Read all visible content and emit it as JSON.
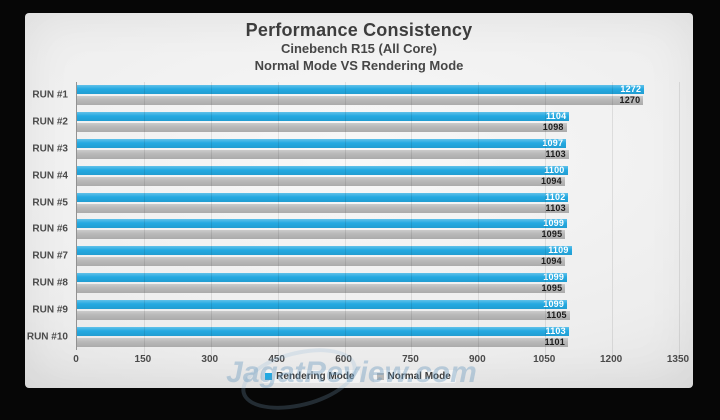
{
  "header": {
    "title": "Performance Consistency",
    "subtitle1": "Cinebench R15 (All Core)",
    "subtitle2": "Normal Mode VS Rendering Mode"
  },
  "watermark": {
    "text": "JagatReview.com"
  },
  "colors": {
    "rendering_mode": "#24a9e1",
    "normal_mode": "#b8b8b8",
    "axis_text": "#4a4a4a",
    "title_text": "#3d3d3d"
  },
  "chart_data": {
    "type": "bar",
    "orientation": "horizontal",
    "title": "Performance Consistency",
    "subtitle": [
      "Cinebench R15 (All Core)",
      "Normal Mode VS Rendering Mode"
    ],
    "categories": [
      "RUN #1",
      "RUN #2",
      "RUN #3",
      "RUN #4",
      "RUN #5",
      "RUN #6",
      "RUN #7",
      "RUN #8",
      "RUN #9",
      "RUN #10"
    ],
    "series": [
      {
        "name": "Rendering Mode",
        "color": "#24a9e1",
        "label_color": "#ffffff",
        "values": [
          1272,
          1104,
          1097,
          1100,
          1102,
          1099,
          1109,
          1099,
          1099,
          1103
        ]
      },
      {
        "name": "Normal Mode",
        "color": "#b8b8b8",
        "label_color": "#1c1c1c",
        "values": [
          1270,
          1098,
          1103,
          1094,
          1103,
          1095,
          1094,
          1095,
          1105,
          1101
        ]
      }
    ],
    "xlabel": "",
    "ylabel": "",
    "xlim": [
      0,
      1350
    ],
    "xticks": [
      0,
      150,
      300,
      450,
      600,
      750,
      900,
      1050,
      1200,
      1350
    ],
    "grid": true,
    "legend_position": "bottom",
    "value_labels": "inside-end"
  }
}
